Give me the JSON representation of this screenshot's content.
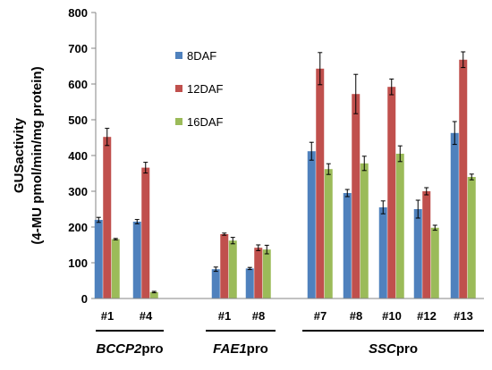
{
  "chart_data": {
    "type": "bar",
    "title": "",
    "ylabel_line1": "GUSactivity",
    "ylabel_line2": "(4-MU pmol/min/mg protein)",
    "ylim": [
      0,
      800
    ],
    "yticks": [
      0,
      100,
      200,
      300,
      400,
      500,
      600,
      700,
      800
    ],
    "grid": false,
    "legend_position": "top-left-center",
    "series": [
      {
        "name": "8DAF",
        "color": "#4f81bd"
      },
      {
        "name": "12DAF",
        "color": "#c0504d"
      },
      {
        "name": "16DAF",
        "color": "#9bbb59"
      }
    ],
    "groups": [
      {
        "label_italic": "BCCP2",
        "label_suffix": "pro",
        "samples": [
          {
            "label": "#1",
            "values": [
              220,
              452,
              166
            ],
            "errors": [
              7,
              24,
              2
            ]
          },
          {
            "label": "#4",
            "values": [
              215,
              366,
              18
            ],
            "errors": [
              6,
              15,
              2
            ]
          }
        ]
      },
      {
        "label_italic": "FAE1",
        "label_suffix": "pro",
        "samples": [
          {
            "label": "#1",
            "values": [
              82,
              180,
              162
            ],
            "errors": [
              6,
              3,
              9
            ]
          },
          {
            "label": "#8",
            "values": [
              84,
              142,
              137
            ],
            "errors": [
              3,
              8,
              12
            ]
          }
        ]
      },
      {
        "label_italic": "SSC",
        "label_suffix": "pro",
        "samples": [
          {
            "label": "#7",
            "values": [
              412,
              643,
              362
            ],
            "errors": [
              25,
              45,
              15
            ]
          },
          {
            "label": "#8",
            "values": [
              295,
              572,
              378
            ],
            "errors": [
              10,
              55,
              20
            ]
          },
          {
            "label": "#10",
            "values": [
              255,
              592,
              405
            ],
            "errors": [
              18,
              22,
              22
            ]
          },
          {
            "label": "#12",
            "values": [
              250,
              300,
              198
            ],
            "errors": [
              25,
              10,
              7
            ]
          },
          {
            "label": "#13",
            "values": [
              463,
              668,
              340
            ],
            "errors": [
              32,
              22,
              8
            ]
          }
        ]
      }
    ]
  }
}
